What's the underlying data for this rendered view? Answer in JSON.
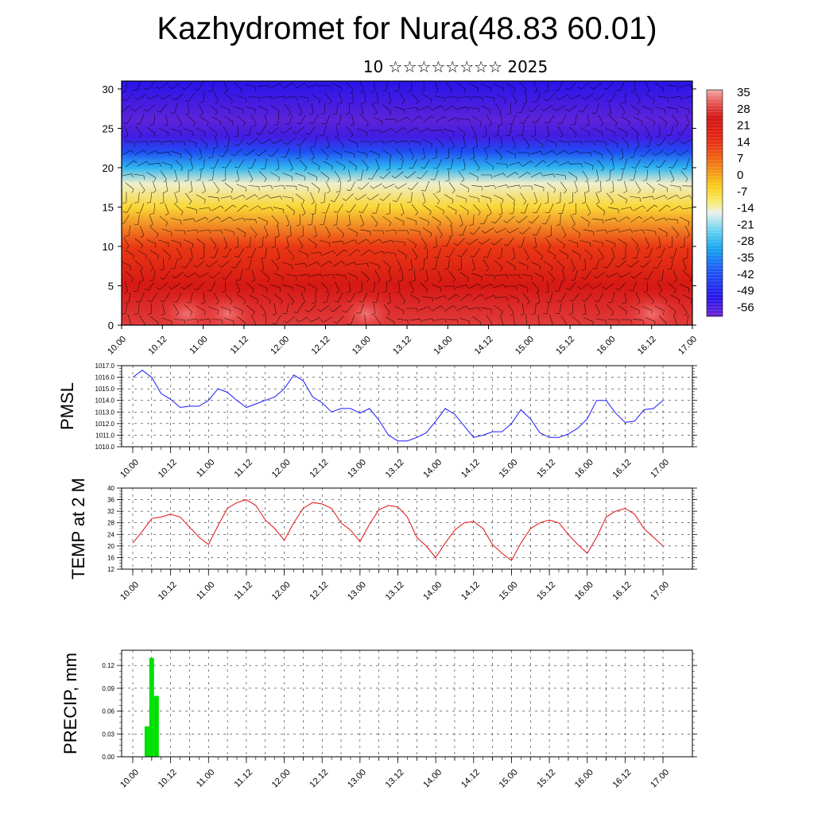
{
  "title": "Kazhydromet for Nura(48.83 60.01)",
  "subtitle": "10 ☆☆☆☆☆☆☆☆ 2025",
  "colors": {
    "pmsl_line": "#1a1aff",
    "temp_line": "#e01010",
    "precip_bar": "#00e000",
    "frame": "#000000",
    "grid": "#000000"
  },
  "chart_data": [
    {
      "type": "heatmap",
      "name": "cross-section",
      "x_tick_labels": [
        "10.00",
        "10.12",
        "11.00",
        "11.12",
        "12.00",
        "12.12",
        "13.00",
        "13.12",
        "14.00",
        "14.12",
        "15.00",
        "15.12",
        "16.00",
        "16.12",
        "17.00"
      ],
      "y_tick_labels": [
        "0",
        "5",
        "10",
        "15",
        "20",
        "25",
        "30"
      ],
      "ylim": [
        0,
        31
      ],
      "colorbar_labels": [
        "35",
        "28",
        "21",
        "14",
        "7",
        "0",
        "-7",
        "-14",
        "-21",
        "-28",
        "-35",
        "-42",
        "-49",
        "-56"
      ],
      "colorbar_range": [
        -60,
        38
      ],
      "wind_barbs": true,
      "level_profile": [
        [
          0,
          30
        ],
        [
          5,
          24
        ],
        [
          10,
          14
        ],
        [
          15,
          -6
        ],
        [
          18,
          -14
        ],
        [
          20,
          -28
        ],
        [
          22,
          -42
        ],
        [
          24,
          -55
        ],
        [
          26,
          -58
        ],
        [
          31,
          -52
        ]
      ]
    },
    {
      "type": "line",
      "name": "pmsl",
      "ylabel": "PMSL",
      "ylim": [
        1010,
        1017
      ],
      "y_tick_labels": [
        "1010.0",
        "1011.0",
        "1012.0",
        "1013.0",
        "1014.0",
        "1015.0",
        "1016.0",
        "1017.0"
      ],
      "x_tick_labels": [
        "10.00",
        "10.12",
        "11.00",
        "11.12",
        "12.00",
        "12.12",
        "13.00",
        "13.12",
        "14.00",
        "14.12",
        "15.00",
        "15.12",
        "16.00",
        "16.12",
        "17.00"
      ],
      "values": [
        1016.0,
        1016.6,
        1016.0,
        1014.6,
        1014.1,
        1013.4,
        1013.5,
        1013.5,
        1014.0,
        1015.0,
        1014.7,
        1014.0,
        1013.4,
        1013.7,
        1014.0,
        1014.3,
        1015.0,
        1016.2,
        1015.7,
        1014.3,
        1013.8,
        1013.0,
        1013.3,
        1013.3,
        1012.9,
        1013.3,
        1012.3,
        1011.0,
        1010.5,
        1010.5,
        1010.8,
        1011.2,
        1012.2,
        1013.3,
        1012.8,
        1011.8,
        1010.8,
        1011.0,
        1011.3,
        1011.3,
        1012.0,
        1013.2,
        1012.4,
        1011.2,
        1010.8,
        1010.8,
        1011.1,
        1011.6,
        1012.4,
        1014.0,
        1014.0,
        1012.9,
        1012.1,
        1012.2,
        1013.2,
        1013.3,
        1014.0
      ]
    },
    {
      "type": "line",
      "name": "temp",
      "ylabel": "TEMP at 2 M",
      "ylim": [
        12,
        40
      ],
      "y_tick_labels": [
        "12",
        "16",
        "20",
        "24",
        "28",
        "32",
        "36",
        "40"
      ],
      "x_tick_labels": [
        "10.00",
        "10.12",
        "11.00",
        "11.12",
        "12.00",
        "12.12",
        "13.00",
        "13.12",
        "14.00",
        "14.12",
        "15.00",
        "15.12",
        "16.00",
        "16.12",
        "17.00"
      ],
      "values": [
        21.0,
        25.0,
        29.5,
        30.0,
        31.0,
        30.0,
        26.5,
        23.0,
        20.5,
        27.0,
        33.0,
        35.0,
        36.0,
        34.0,
        29.0,
        26.0,
        22.0,
        28.0,
        33.0,
        35.0,
        34.5,
        33.0,
        28.0,
        25.5,
        21.5,
        27.5,
        32.5,
        34.0,
        33.5,
        30.0,
        23.0,
        20.0,
        16.0,
        21.0,
        25.5,
        28.0,
        28.5,
        26.0,
        20.5,
        17.5,
        15.0,
        21.0,
        26.0,
        28.0,
        29.0,
        28.0,
        24.0,
        20.5,
        17.5,
        23.0,
        30.0,
        32.0,
        33.0,
        31.0,
        26.0,
        23.0,
        20.0
      ]
    },
    {
      "type": "bar",
      "name": "precip",
      "ylabel": "PRECIP, mm",
      "ylim": [
        0,
        0.14
      ],
      "y_tick_labels": [
        "0.00",
        "0.03",
        "0.06",
        "0.09",
        "0.12"
      ],
      "x_tick_labels": [
        "10.00",
        "10.12",
        "11.00",
        "11.12",
        "12.00",
        "12.12",
        "13.00",
        "13.12",
        "14.00",
        "14.12",
        "15.00",
        "15.12",
        "16.00",
        "16.12",
        "17.00"
      ],
      "bars": [
        {
          "t": 0.375,
          "value": 0.04
        },
        {
          "t": 0.5,
          "value": 0.13
        },
        {
          "t": 0.625,
          "value": 0.08
        }
      ]
    }
  ]
}
